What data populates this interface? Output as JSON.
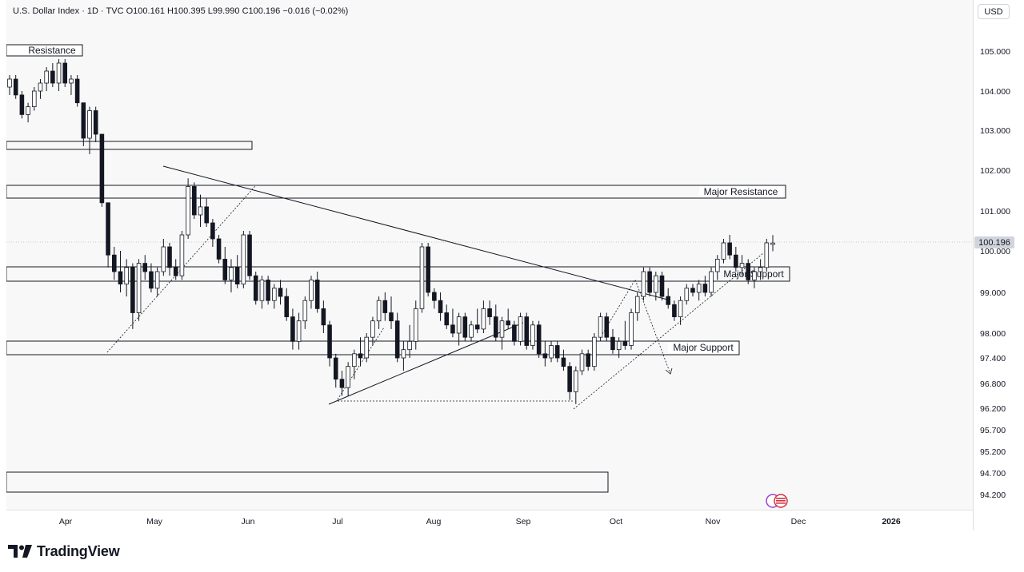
{
  "header": {
    "text": "U.S. Dollar Index · 1D · TVC  O100.161  H100.395  L99.990  C100.196  −0.016 (−0.02%)"
  },
  "price_scale": {
    "currency": "USD",
    "last_price_label": "100.196"
  },
  "footer": {
    "brand": "TradingView"
  },
  "colors": {
    "candle": "#131722",
    "zone_border": "#131722",
    "trendline": "#131722",
    "last_price_badge": "#d1d4dc"
  },
  "chart_data": {
    "type": "candlestick",
    "title": "U.S. Dollar Index · 1D · TVC",
    "ohlc_last": {
      "open": 100.161,
      "high": 100.395,
      "low": 99.99,
      "close": 100.196,
      "change": -0.016,
      "change_pct": -0.02
    },
    "y_ticks": [
      "105.000",
      "104.000",
      "103.000",
      "102.000",
      "101.000",
      "100.000",
      "99.000",
      "98.000",
      "97.400",
      "96.800",
      "96.200",
      "95.700",
      "95.200",
      "94.700",
      "94.200"
    ],
    "x_ticks": [
      "Apr",
      "May",
      "Jun",
      "Jul",
      "Aug",
      "Sep",
      "Oct",
      "Nov",
      "Dec",
      "2026"
    ],
    "zone_labels": [
      "Resistance",
      "Major Resistance",
      "Major Support",
      "Major Support"
    ],
    "candles": [
      [
        104.1,
        104.4,
        103.9,
        104.3
      ],
      [
        104.3,
        104.4,
        103.8,
        103.9
      ],
      [
        103.9,
        104.0,
        103.3,
        103.4
      ],
      [
        103.4,
        103.7,
        103.2,
        103.6
      ],
      [
        103.6,
        104.1,
        103.5,
        104.0
      ],
      [
        104.0,
        104.3,
        103.8,
        104.2
      ],
      [
        104.2,
        104.6,
        104.0,
        104.5
      ],
      [
        104.5,
        104.7,
        104.1,
        104.2
      ],
      [
        104.2,
        104.8,
        104.0,
        104.7
      ],
      [
        104.7,
        104.8,
        104.1,
        104.2
      ],
      [
        104.2,
        104.4,
        103.9,
        104.3
      ],
      [
        104.3,
        104.4,
        103.6,
        103.7
      ],
      [
        103.7,
        103.7,
        102.6,
        102.8
      ],
      [
        102.8,
        103.6,
        102.4,
        103.5
      ],
      [
        103.5,
        103.6,
        102.7,
        102.9
      ],
      [
        102.9,
        102.9,
        101.1,
        101.2
      ],
      [
        101.2,
        101.2,
        99.6,
        99.9
      ],
      [
        99.9,
        100.1,
        99.3,
        99.5
      ],
      [
        99.5,
        100.0,
        99.0,
        99.2
      ],
      [
        99.2,
        99.8,
        98.9,
        99.6
      ],
      [
        99.6,
        99.7,
        98.1,
        98.5
      ],
      [
        98.5,
        99.8,
        98.3,
        99.7
      ],
      [
        99.7,
        99.9,
        99.3,
        99.5
      ],
      [
        99.5,
        99.7,
        99.0,
        99.1
      ],
      [
        99.1,
        99.6,
        98.9,
        99.5
      ],
      [
        99.5,
        100.3,
        99.4,
        100.1
      ],
      [
        100.1,
        100.2,
        99.4,
        99.6
      ],
      [
        99.6,
        99.8,
        99.3,
        99.4
      ],
      [
        99.4,
        100.5,
        99.3,
        100.4
      ],
      [
        100.4,
        101.8,
        100.3,
        101.6
      ],
      [
        101.6,
        101.7,
        100.8,
        100.9
      ],
      [
        100.9,
        101.4,
        100.6,
        101.1
      ],
      [
        101.1,
        101.3,
        100.6,
        100.7
      ],
      [
        100.7,
        100.8,
        100.1,
        100.3
      ],
      [
        100.3,
        100.4,
        99.7,
        99.8
      ],
      [
        99.8,
        100.1,
        99.2,
        99.3
      ],
      [
        99.3,
        99.8,
        99.0,
        99.6
      ],
      [
        99.6,
        99.9,
        99.1,
        99.2
      ],
      [
        99.2,
        100.5,
        99.1,
        100.4
      ],
      [
        100.4,
        100.5,
        99.3,
        99.4
      ],
      [
        99.4,
        99.5,
        98.7,
        98.8
      ],
      [
        98.8,
        99.4,
        98.6,
        99.3
      ],
      [
        99.3,
        99.4,
        98.7,
        98.8
      ],
      [
        98.8,
        99.2,
        98.6,
        99.1
      ],
      [
        99.1,
        99.3,
        98.7,
        98.9
      ],
      [
        98.9,
        99.1,
        98.3,
        98.4
      ],
      [
        98.4,
        98.6,
        97.6,
        97.8
      ],
      [
        97.8,
        98.5,
        97.6,
        98.3
      ],
      [
        98.3,
        98.9,
        98.1,
        98.8
      ],
      [
        98.8,
        99.4,
        98.6,
        99.3
      ],
      [
        99.3,
        99.5,
        98.5,
        98.6
      ],
      [
        98.6,
        98.8,
        98.0,
        98.2
      ],
      [
        98.2,
        98.3,
        97.2,
        97.4
      ],
      [
        97.4,
        97.5,
        96.7,
        96.9
      ],
      [
        96.9,
        97.1,
        96.5,
        96.7
      ],
      [
        96.7,
        97.3,
        96.5,
        97.2
      ],
      [
        97.2,
        97.6,
        96.9,
        97.5
      ],
      [
        97.5,
        97.9,
        97.2,
        97.4
      ],
      [
        97.4,
        98.0,
        97.3,
        97.9
      ],
      [
        97.9,
        98.4,
        97.7,
        98.3
      ],
      [
        98.3,
        98.9,
        98.1,
        98.8
      ],
      [
        98.8,
        99.0,
        98.3,
        98.5
      ],
      [
        98.5,
        98.9,
        98.1,
        98.3
      ],
      [
        98.3,
        98.5,
        97.3,
        97.4
      ],
      [
        97.4,
        97.8,
        97.1,
        97.6
      ],
      [
        97.6,
        98.2,
        97.4,
        97.8
      ],
      [
        97.8,
        98.8,
        97.6,
        98.6
      ],
      [
        98.6,
        100.2,
        98.5,
        100.1
      ],
      [
        100.1,
        100.2,
        98.9,
        99.0
      ],
      [
        99.0,
        99.1,
        98.6,
        98.8
      ],
      [
        98.8,
        99.0,
        98.3,
        98.5
      ],
      [
        98.5,
        98.7,
        98.1,
        98.2
      ],
      [
        98.2,
        98.6,
        97.9,
        98.0
      ],
      [
        98.0,
        98.5,
        97.7,
        98.4
      ],
      [
        98.4,
        98.5,
        97.8,
        97.9
      ],
      [
        97.9,
        98.3,
        97.8,
        98.2
      ],
      [
        98.2,
        98.6,
        98.0,
        98.1
      ],
      [
        98.1,
        98.8,
        98.0,
        98.6
      ],
      [
        98.6,
        98.8,
        98.2,
        98.4
      ],
      [
        98.4,
        98.7,
        97.8,
        97.9
      ],
      [
        97.9,
        98.4,
        97.6,
        98.3
      ],
      [
        98.3,
        98.6,
        98.1,
        98.2
      ],
      [
        98.2,
        98.3,
        97.7,
        97.8
      ],
      [
        97.8,
        98.5,
        97.7,
        98.4
      ],
      [
        98.4,
        98.5,
        97.6,
        97.7
      ],
      [
        97.7,
        98.3,
        97.6,
        98.2
      ],
      [
        98.2,
        98.3,
        97.4,
        97.5
      ],
      [
        97.5,
        97.8,
        97.2,
        97.4
      ],
      [
        97.4,
        97.8,
        97.3,
        97.7
      ],
      [
        97.7,
        97.8,
        97.3,
        97.4
      ],
      [
        97.4,
        97.6,
        97.1,
        97.2
      ],
      [
        97.2,
        97.3,
        96.4,
        96.6
      ],
      [
        96.6,
        97.2,
        96.3,
        97.1
      ],
      [
        97.1,
        97.6,
        97.0,
        97.5
      ],
      [
        97.5,
        97.6,
        97.1,
        97.2
      ],
      [
        97.2,
        98.0,
        97.1,
        97.9
      ],
      [
        97.9,
        98.5,
        97.8,
        98.4
      ],
      [
        98.4,
        98.5,
        97.8,
        97.9
      ],
      [
        97.9,
        98.1,
        97.5,
        97.6
      ],
      [
        97.6,
        97.9,
        97.4,
        97.8
      ],
      [
        97.8,
        98.3,
        97.6,
        97.7
      ],
      [
        97.7,
        98.6,
        97.6,
        98.5
      ],
      [
        98.5,
        99.0,
        98.3,
        98.9
      ],
      [
        98.9,
        99.6,
        98.8,
        99.5
      ],
      [
        99.5,
        99.6,
        98.9,
        99.0
      ],
      [
        99.0,
        99.5,
        98.8,
        99.4
      ],
      [
        99.4,
        99.5,
        98.8,
        98.9
      ],
      [
        98.9,
        99.1,
        98.6,
        98.7
      ],
      [
        98.7,
        98.8,
        98.3,
        98.4
      ],
      [
        98.4,
        98.9,
        98.2,
        98.8
      ],
      [
        98.8,
        99.2,
        98.7,
        99.1
      ],
      [
        99.1,
        99.2,
        98.9,
        99.0
      ],
      [
        99.0,
        99.3,
        98.8,
        99.2
      ],
      [
        99.2,
        99.4,
        98.9,
        99.0
      ],
      [
        99.0,
        99.6,
        98.9,
        99.5
      ],
      [
        99.5,
        99.9,
        99.3,
        99.8
      ],
      [
        99.8,
        100.3,
        99.7,
        100.2
      ],
      [
        100.2,
        100.4,
        99.8,
        99.9
      ],
      [
        99.9,
        100.1,
        99.5,
        99.6
      ],
      [
        99.6,
        99.9,
        99.4,
        99.7
      ],
      [
        99.7,
        99.8,
        99.2,
        99.3
      ],
      [
        99.3,
        99.6,
        99.1,
        99.5
      ],
      [
        99.5,
        99.8,
        99.3,
        99.6
      ],
      [
        99.6,
        100.3,
        99.5,
        100.2
      ],
      [
        100.161,
        100.395,
        99.99,
        100.196
      ]
    ]
  }
}
